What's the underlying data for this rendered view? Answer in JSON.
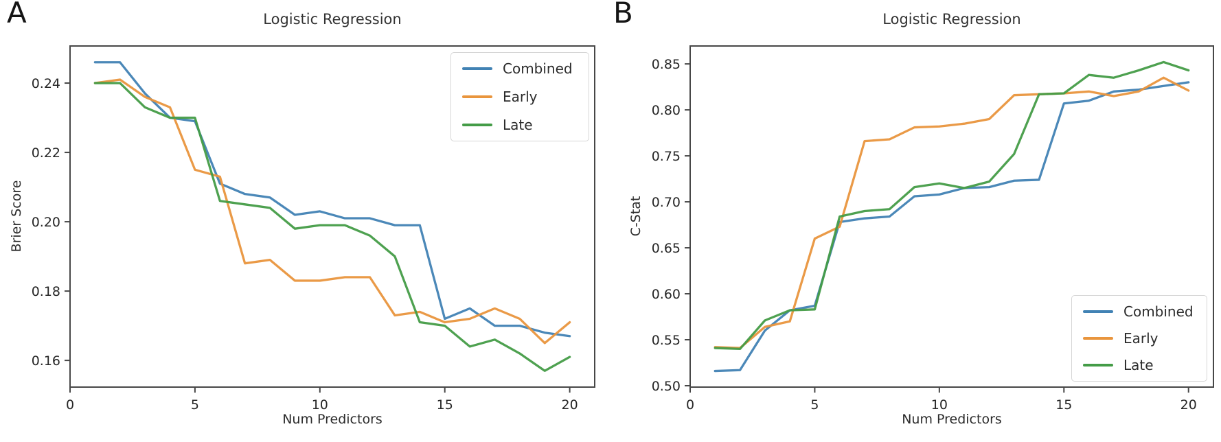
{
  "figure": {
    "background": "#ffffff",
    "spine_color": "#474747",
    "text_color": "#262626",
    "panels": [
      {
        "letter": "A"
      },
      {
        "letter": "B"
      }
    ]
  },
  "chart_data": [
    {
      "type": "line",
      "panel": "A",
      "title": "Logistic Regression",
      "xlabel": "Num Predictors",
      "ylabel": "Brier Score",
      "grid": false,
      "legend_position": "upper right",
      "xlim": [
        0,
        21
      ],
      "ylim": [
        0.1523,
        0.2507
      ],
      "xticks": [
        "0",
        "5",
        "10",
        "15",
        "20"
      ],
      "xtick_values": [
        0,
        5,
        10,
        15,
        20
      ],
      "yticks": [
        "0.16",
        "0.18",
        "0.20",
        "0.22",
        "0.24"
      ],
      "ytick_values": [
        0.16,
        0.18,
        0.2,
        0.22,
        0.24
      ],
      "x": [
        1,
        2,
        3,
        4,
        5,
        6,
        7,
        8,
        9,
        10,
        11,
        12,
        13,
        14,
        15,
        16,
        17,
        18,
        19,
        20
      ],
      "series": [
        {
          "name": "Combined",
          "color": "#4182b4",
          "values": [
            0.246,
            0.246,
            0.237,
            0.23,
            0.229,
            0.211,
            0.208,
            0.207,
            0.202,
            0.203,
            0.201,
            0.201,
            0.199,
            0.199,
            0.172,
            0.175,
            0.17,
            0.17,
            0.168,
            0.167
          ]
        },
        {
          "name": "Early",
          "color": "#e9953d",
          "values": [
            0.24,
            0.241,
            0.236,
            0.233,
            0.215,
            0.213,
            0.188,
            0.189,
            0.183,
            0.183,
            0.184,
            0.184,
            0.173,
            0.174,
            0.171,
            0.172,
            0.175,
            0.172,
            0.165,
            0.171
          ]
        },
        {
          "name": "Late",
          "color": "#449c47",
          "values": [
            0.24,
            0.24,
            0.233,
            0.23,
            0.23,
            0.206,
            0.205,
            0.204,
            0.198,
            0.199,
            0.199,
            0.196,
            0.19,
            0.171,
            0.17,
            0.164,
            0.166,
            0.162,
            0.157,
            0.161
          ]
        }
      ]
    },
    {
      "type": "line",
      "panel": "B",
      "title": "Logistic Regression",
      "xlabel": "Num Predictors",
      "ylabel": "C-Stat",
      "grid": false,
      "legend_position": "lower right",
      "xlim": [
        0,
        21
      ],
      "ylim": [
        0.4985,
        0.8695
      ],
      "xticks": [
        "0",
        "5",
        "10",
        "15",
        "20"
      ],
      "xtick_values": [
        0,
        5,
        10,
        15,
        20
      ],
      "yticks": [
        "0.50",
        "0.55",
        "0.60",
        "0.65",
        "0.70",
        "0.75",
        "0.80",
        "0.85"
      ],
      "ytick_values": [
        0.5,
        0.55,
        0.6,
        0.65,
        0.7,
        0.75,
        0.8,
        0.85
      ],
      "x": [
        1,
        2,
        3,
        4,
        5,
        6,
        7,
        8,
        9,
        10,
        11,
        12,
        13,
        14,
        15,
        16,
        17,
        18,
        19,
        20
      ],
      "series": [
        {
          "name": "Combined",
          "color": "#4182b4",
          "values": [
            0.516,
            0.517,
            0.56,
            0.582,
            0.587,
            0.678,
            0.682,
            0.684,
            0.706,
            0.708,
            0.715,
            0.716,
            0.723,
            0.724,
            0.807,
            0.81,
            0.82,
            0.822,
            0.826,
            0.83
          ]
        },
        {
          "name": "Early",
          "color": "#e9953d",
          "values": [
            0.542,
            0.541,
            0.564,
            0.57,
            0.66,
            0.673,
            0.766,
            0.768,
            0.781,
            0.782,
            0.785,
            0.79,
            0.816,
            0.817,
            0.818,
            0.82,
            0.815,
            0.82,
            0.835,
            0.821
          ]
        },
        {
          "name": "Late",
          "color": "#449c47",
          "values": [
            0.541,
            0.54,
            0.571,
            0.582,
            0.583,
            0.684,
            0.69,
            0.692,
            0.716,
            0.72,
            0.715,
            0.722,
            0.752,
            0.817,
            0.818,
            0.838,
            0.835,
            0.843,
            0.852,
            0.843
          ]
        }
      ]
    }
  ]
}
